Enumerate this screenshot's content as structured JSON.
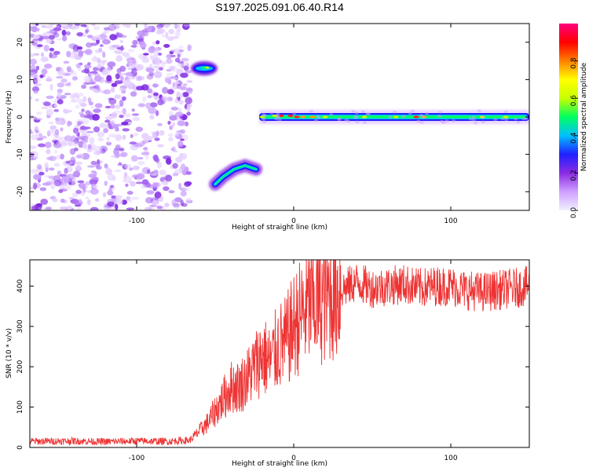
{
  "figure_title": "S197.2025.091.06.40.R14",
  "colors": {
    "snr_line": "#ee3333",
    "background": "#ffffff",
    "colormap": [
      "#f0f0ff",
      "#cfa0ff",
      "#8a2be2",
      "#2020ff",
      "#00c0ff",
      "#00ff60",
      "#c8ff00",
      "#ffff00",
      "#ff8000",
      "#ff0000",
      "#ff0080"
    ]
  },
  "chart_data": [
    {
      "type": "heatmap",
      "title": "",
      "xlabel": "Height of straight line (km)",
      "ylabel": "Frequency (Hz)",
      "xlim": [
        -168,
        150
      ],
      "ylim": [
        -25,
        25
      ],
      "x_ticks": [
        "-100",
        "0",
        "100"
      ],
      "y_ticks": [
        "-20",
        "-10",
        "0",
        "10",
        "20"
      ],
      "colorbar": {
        "label": "Normalized spectral amplitude",
        "range": [
          0,
          1
        ],
        "ticks": [
          "0.0",
          "0.2",
          "0.4",
          "0.6",
          "0.8"
        ]
      },
      "features": [
        {
          "name": "noise",
          "x_range": [
            -168,
            -66
          ],
          "y_range": [
            -25,
            25
          ],
          "amplitude": 0.1
        },
        {
          "name": "upper-blob",
          "x_range": [
            -64,
            -50
          ],
          "y_center": 13,
          "amplitude": 0.55
        },
        {
          "name": "lower-arc",
          "x": [
            -50,
            -45,
            -38,
            -31,
            -24
          ],
          "y": [
            -18,
            -16,
            -14,
            -13,
            -14
          ],
          "amplitude": 0.5
        },
        {
          "name": "carrier",
          "x_range": [
            -22,
            150
          ],
          "y_center": 0,
          "amplitude": 0.75
        }
      ]
    },
    {
      "type": "line",
      "title": "",
      "xlabel": "Height of straight line (km)",
      "ylabel": "SNR (10 * v/v)",
      "xlim": [
        -168,
        150
      ],
      "ylim": [
        0,
        465
      ],
      "x_ticks": [
        "-100",
        "0",
        "100"
      ],
      "y_ticks": [
        "0",
        "100",
        "200",
        "300",
        "400"
      ],
      "series": [
        {
          "x": [
            -168,
            -140,
            -120,
            -100,
            -80,
            -66,
            -55,
            -50,
            -45,
            -40,
            -35,
            -30,
            -25,
            -20,
            -15,
            -10,
            -5,
            0,
            5,
            10,
            15,
            20,
            25,
            30,
            35,
            40,
            50,
            60,
            70,
            80,
            90,
            100,
            110,
            120,
            130,
            140,
            150
          ],
          "y": [
            15,
            16,
            14,
            16,
            15,
            18,
            60,
            90,
            120,
            150,
            150,
            170,
            200,
            230,
            210,
            250,
            260,
            300,
            330,
            350,
            360,
            370,
            380,
            390,
            400,
            410,
            395,
            400,
            405,
            395,
            400,
            400,
            390,
            385,
            390,
            395,
            400
          ]
        }
      ]
    }
  ]
}
